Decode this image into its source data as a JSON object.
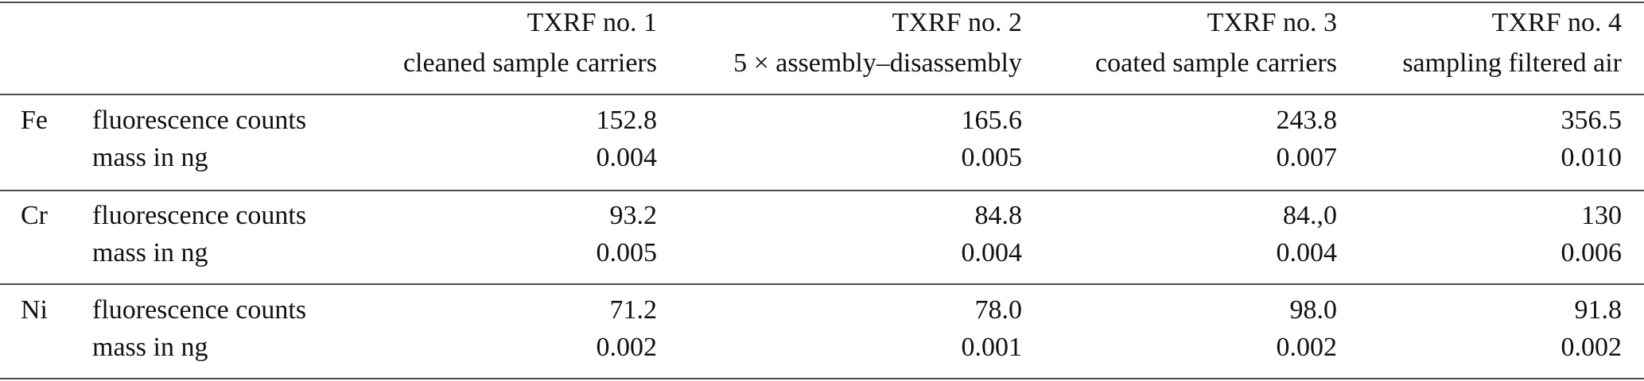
{
  "table": {
    "columns": [
      {
        "name": "TXRF no. 1",
        "description": "cleaned sample carriers"
      },
      {
        "name": "TXRF no. 2",
        "description": "5 × assembly–disassembly"
      },
      {
        "name": "TXRF no. 3",
        "description": "coated sample carriers"
      },
      {
        "name": "TXRF no. 4",
        "description": "sampling filtered air"
      }
    ],
    "groups": [
      {
        "element": "Fe",
        "rows": [
          {
            "label": "fluorescence counts",
            "values": [
              "152.8",
              "165.6",
              "243.8",
              "356.5"
            ]
          },
          {
            "label": "mass in ng",
            "values": [
              "0.004",
              "0.005",
              "0.007",
              "0.010"
            ]
          }
        ]
      },
      {
        "element": "Cr",
        "rows": [
          {
            "label": "fluorescence counts",
            "values": [
              "93.2",
              "84.8",
              "84.,0",
              "130"
            ]
          },
          {
            "label": "mass in ng",
            "values": [
              "0.005",
              "0.004",
              "0.004",
              "0.006"
            ]
          }
        ]
      },
      {
        "element": "Ni",
        "rows": [
          {
            "label": "fluorescence counts",
            "values": [
              "71.2",
              "78.0",
              "98.0",
              "91.8"
            ]
          },
          {
            "label": "mass in ng",
            "values": [
              "0.002",
              "0.001",
              "0.002",
              "0.002"
            ]
          }
        ]
      }
    ]
  }
}
